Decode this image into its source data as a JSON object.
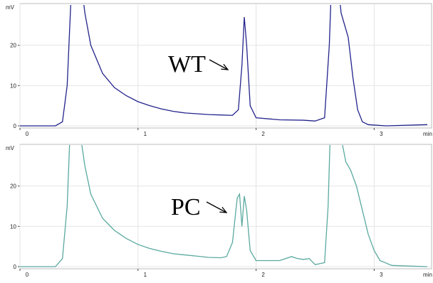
{
  "chart_data": [
    {
      "type": "line",
      "annotation": "WT",
      "xlabel": "min",
      "ylabel": "mV",
      "xlim": [
        0,
        3.45
      ],
      "ylim": [
        0,
        30
      ],
      "xticks": [
        0,
        1,
        2,
        3
      ],
      "yticks": [
        0,
        10,
        20
      ],
      "grid": true,
      "series": [
        {
          "color": "#23238c",
          "x": [
            0,
            0.3,
            0.36,
            0.4,
            0.43,
            0.46,
            0.5,
            0.55,
            0.6,
            0.7,
            0.8,
            0.9,
            1.0,
            1.1,
            1.2,
            1.3,
            1.4,
            1.5,
            1.6,
            1.7,
            1.8,
            1.85,
            1.88,
            1.9,
            1.92,
            1.95,
            2.0,
            2.2,
            2.4,
            2.5,
            2.58,
            2.62,
            2.65,
            2.68,
            2.72,
            2.78,
            2.82,
            2.86,
            2.9,
            2.95,
            3.1,
            3.45
          ],
          "values": [
            0,
            0,
            1,
            10,
            30,
            45,
            40,
            28,
            20,
            13,
            9.5,
            7.5,
            6,
            5,
            4.2,
            3.6,
            3.2,
            3,
            2.8,
            2.7,
            2.6,
            4,
            15,
            27,
            20,
            5,
            2,
            1.5,
            1.4,
            1.2,
            2,
            20,
            45,
            40,
            28,
            22,
            12,
            4,
            1,
            0.3,
            0,
            0.3
          ]
        }
      ]
    },
    {
      "type": "line",
      "annotation": "PC",
      "xlabel": "min",
      "ylabel": "mV",
      "xlim": [
        0,
        3.45
      ],
      "ylim": [
        0,
        30
      ],
      "xticks": [
        0,
        1,
        2,
        3
      ],
      "yticks": [
        0,
        10,
        20
      ],
      "grid": true,
      "series": [
        {
          "color": "#5aa9a0",
          "x": [
            0,
            0.3,
            0.36,
            0.4,
            0.42,
            0.45,
            0.5,
            0.55,
            0.6,
            0.7,
            0.8,
            0.9,
            1.0,
            1.1,
            1.2,
            1.3,
            1.4,
            1.5,
            1.6,
            1.7,
            1.75,
            1.8,
            1.84,
            1.86,
            1.88,
            1.9,
            1.92,
            1.95,
            2.0,
            2.2,
            2.3,
            2.35,
            2.4,
            2.45,
            2.5,
            2.58,
            2.61,
            2.64,
            2.68,
            2.72,
            2.76,
            2.8,
            2.85,
            2.9,
            2.95,
            3.0,
            3.05,
            3.15,
            3.45
          ],
          "values": [
            0,
            0,
            2,
            15,
            30,
            45,
            35,
            25,
            18,
            12,
            9,
            7,
            5.5,
            4.5,
            3.8,
            3.2,
            2.9,
            2.6,
            2.3,
            2.2,
            2.5,
            6,
            17,
            18,
            10,
            17.5,
            14,
            4,
            1.5,
            1.5,
            2.5,
            2,
            1.8,
            2,
            0.5,
            1,
            15,
            45,
            40,
            32,
            26,
            24,
            20,
            14,
            8,
            4,
            1.5,
            0.3,
            0
          ]
        }
      ]
    }
  ]
}
